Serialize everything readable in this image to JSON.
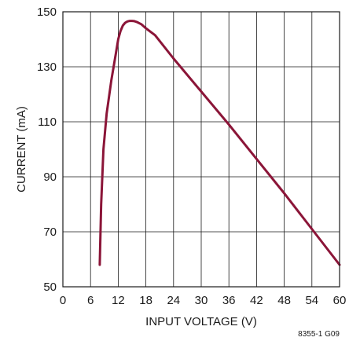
{
  "chart_data": {
    "type": "line",
    "title": "",
    "xlabel": "INPUT VOLTAGE (V)",
    "ylabel": "CURRENT (mA)",
    "xlim": [
      0,
      60
    ],
    "ylim": [
      50,
      150
    ],
    "x_ticks": [
      "0",
      "6",
      "12",
      "18",
      "24",
      "30",
      "36",
      "42",
      "48",
      "54",
      "60"
    ],
    "y_ticks": [
      "50",
      "70",
      "90",
      "110",
      "130",
      "150"
    ],
    "grid": true,
    "series": [
      {
        "color": "#8b1538",
        "x": [
          8,
          8.3,
          8.8,
          9.5,
          10.5,
          11.5,
          12,
          12.5,
          13,
          13.5,
          14,
          14.5,
          15,
          15.5,
          16,
          17,
          18,
          20,
          24,
          30,
          36,
          42,
          48,
          54,
          60
        ],
        "y": [
          58,
          80,
          100,
          113,
          125,
          135,
          140,
          143,
          145,
          146,
          146.5,
          146.7,
          146.7,
          146.6,
          146.3,
          145.5,
          144,
          141.5,
          133,
          121,
          109,
          96.5,
          84,
          71,
          58
        ]
      }
    ],
    "annotation": "8355-1 G09"
  }
}
